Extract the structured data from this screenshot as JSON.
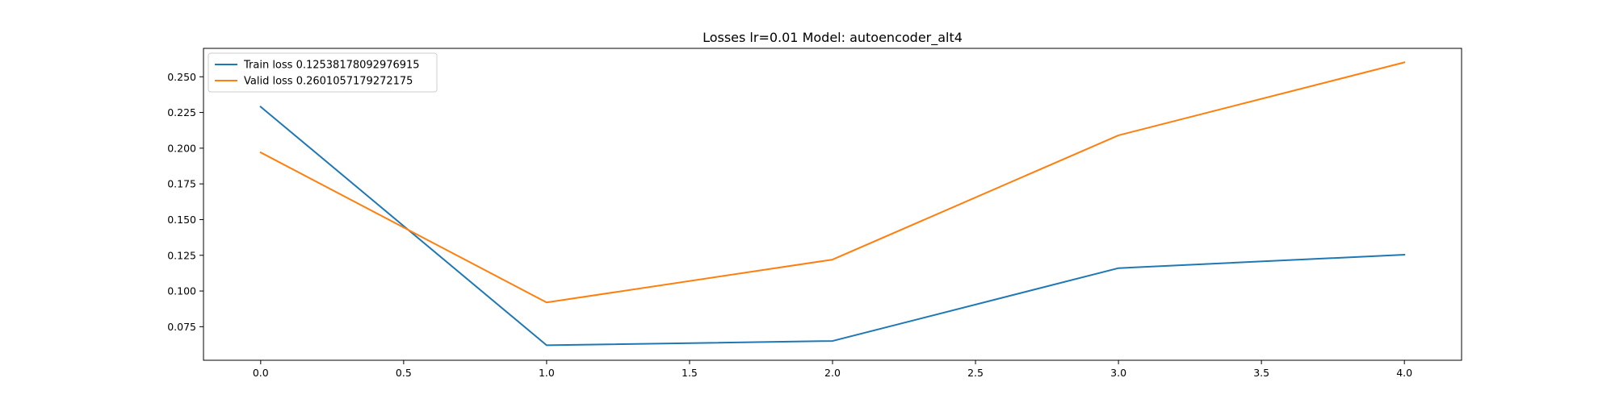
{
  "chart_data": {
    "type": "line",
    "title": "Losses lr=0.01 Model: autoencoder_alt4",
    "xlabel": "",
    "ylabel": "",
    "xlim": [
      -0.2,
      4.2
    ],
    "ylim": [
      0.0515,
      0.2699
    ],
    "x_ticks": [
      "0.0",
      "0.5",
      "1.0",
      "1.5",
      "2.0",
      "2.5",
      "3.0",
      "3.5",
      "4.0"
    ],
    "y_ticks": [
      "0.075",
      "0.100",
      "0.125",
      "0.150",
      "0.175",
      "0.200",
      "0.225",
      "0.250"
    ],
    "grid": false,
    "legend_position": "top-left",
    "x": [
      0,
      1,
      2,
      3,
      4
    ],
    "series": [
      {
        "name": "Train loss 0.12538178092976915",
        "color": "#1f77b4",
        "values": [
          0.229,
          0.062,
          0.065,
          0.116,
          0.1254
        ]
      },
      {
        "name": "Valid loss 0.2601057179272175",
        "color": "#ff7f0e",
        "values": [
          0.197,
          0.092,
          0.122,
          0.209,
          0.2601
        ]
      }
    ]
  }
}
